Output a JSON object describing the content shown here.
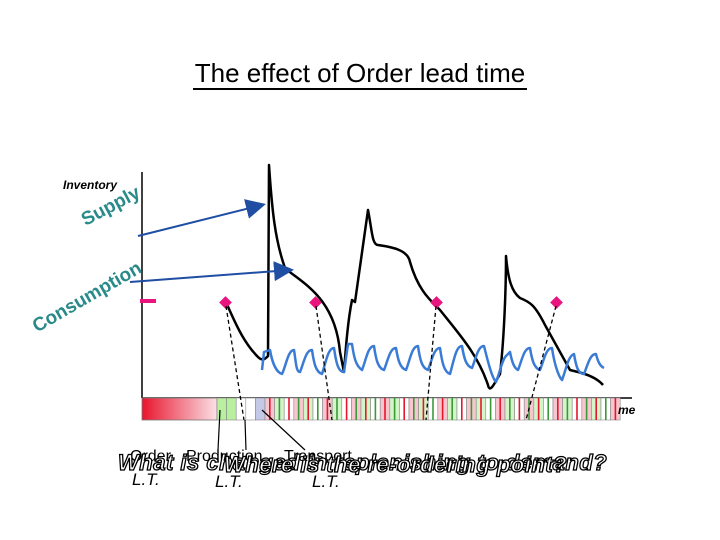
{
  "title": "The effect of Order lead time",
  "axis": {
    "y_label": "Inventory",
    "x_label": "me"
  },
  "curve_labels": {
    "supply": "Supply",
    "consumption": "Consumption"
  },
  "lead_times": {
    "order": {
      "line1": "Order",
      "line2": "L.T."
    },
    "production": {
      "line1": "Production",
      "line2": "L.T."
    },
    "transport": {
      "line1": "Transport",
      "line2": "L.T."
    }
  },
  "questions": {
    "q1": "What is changed in replenishing to demand?",
    "q2": "Where is the re-ordering point?"
  },
  "colors": {
    "supply_curve": "#000000",
    "consumption_curve": "#3a7bd5",
    "markers": "#e8157f",
    "arrows": "#1f4ea3",
    "timeline_red": "#e8152d",
    "timeline_green": "#b8f0a0",
    "timeline_blue": "#c5c9e8"
  }
}
